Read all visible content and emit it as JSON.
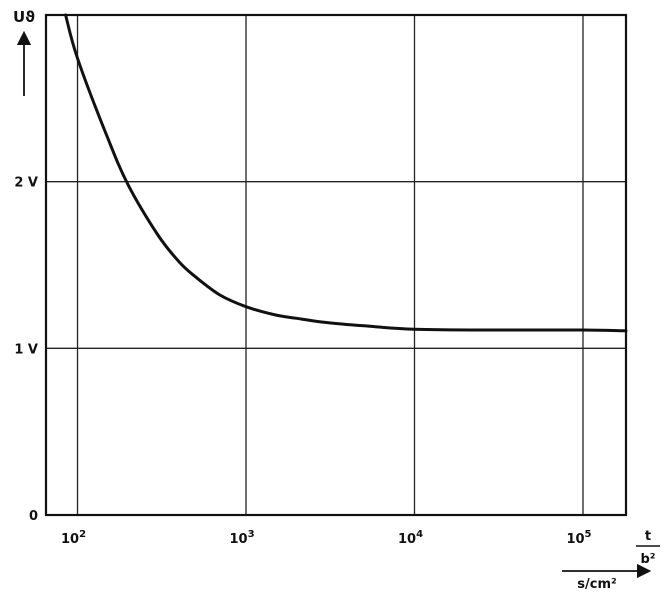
{
  "chart_data": {
    "type": "line",
    "xscale": "log",
    "xlim": [
      65,
      180000
    ],
    "ylim": [
      0,
      3
    ],
    "grid": true,
    "legend": "none",
    "ylabel": "Uϑ",
    "xlabel_fraction": {
      "numerator": "t",
      "denominator": "b²"
    },
    "xunit": "s/cm²",
    "y_ticks": [
      {
        "value": 0,
        "label": "0"
      },
      {
        "value": 1,
        "label": "1 V"
      },
      {
        "value": 2,
        "label": "2 V"
      }
    ],
    "x_ticks": [
      {
        "value": 100,
        "base": "10",
        "exp": "2"
      },
      {
        "value": 1000,
        "base": "10",
        "exp": "3"
      },
      {
        "value": 10000,
        "base": "10",
        "exp": "4"
      },
      {
        "value": 100000,
        "base": "10",
        "exp": "5"
      }
    ],
    "series": [
      {
        "color": "#111111",
        "x": [
          85,
          100,
          150,
          200,
          300,
          400,
          500,
          700,
          1000,
          1500,
          2000,
          3000,
          5000,
          10000,
          30000,
          100000,
          180000
        ],
        "y": [
          3.0,
          2.74,
          2.27,
          1.98,
          1.68,
          1.52,
          1.43,
          1.32,
          1.25,
          1.2,
          1.18,
          1.155,
          1.135,
          1.115,
          1.11,
          1.11,
          1.105
        ]
      }
    ]
  }
}
